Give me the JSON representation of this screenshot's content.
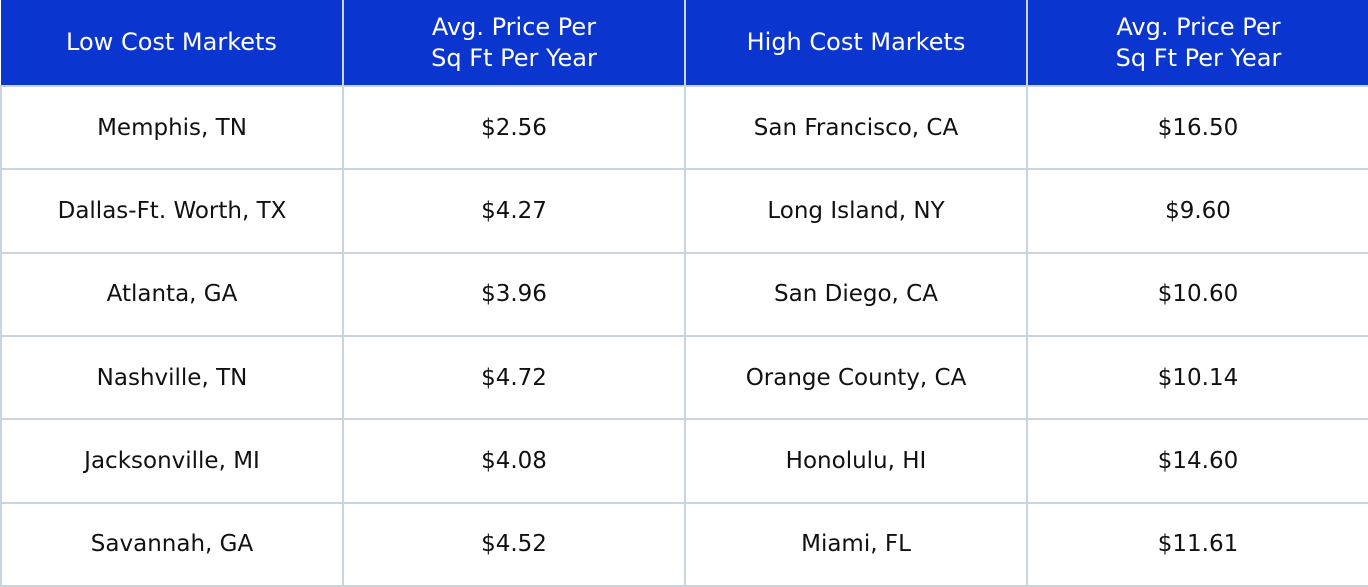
{
  "colors": {
    "header_bg": "#0a35cf",
    "header_text": "#ffffff",
    "grid_line": "#c9d4dc",
    "cell_text": "#111111"
  },
  "table": {
    "headers": [
      {
        "lines": [
          "Low Cost Markets"
        ]
      },
      {
        "lines": [
          "Avg. Price Per",
          "Sq Ft Per Year"
        ]
      },
      {
        "lines": [
          "High Cost Markets"
        ]
      },
      {
        "lines": [
          "Avg. Price Per",
          "Sq Ft Per Year"
        ]
      }
    ],
    "rows": [
      [
        "Memphis, TN",
        "$2.56",
        "San Francisco, CA",
        "$16.50"
      ],
      [
        "Dallas-Ft. Worth, TX",
        "$4.27",
        "Long Island, NY",
        "$9.60"
      ],
      [
        "Atlanta, GA",
        "$3.96",
        "San Diego, CA",
        "$10.60"
      ],
      [
        "Nashville, TN",
        "$4.72",
        "Orange County, CA",
        "$10.14"
      ],
      [
        "Jacksonville, MI",
        "$4.08",
        "Honolulu, HI",
        "$14.60"
      ],
      [
        "Savannah, GA",
        "$4.52",
        "Miami, FL",
        "$11.61"
      ]
    ]
  }
}
